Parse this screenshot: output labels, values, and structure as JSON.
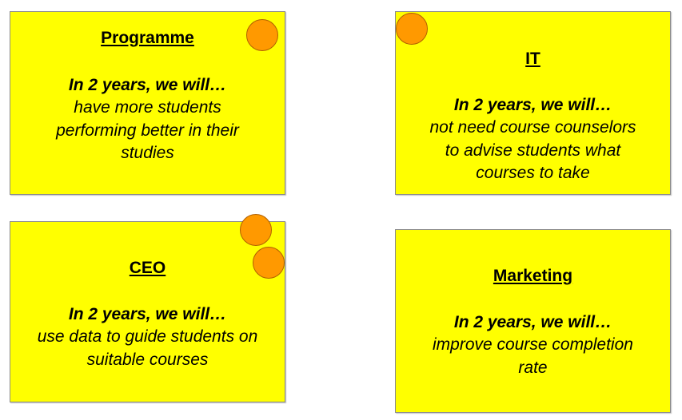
{
  "colors": {
    "note_background": "#ffff00",
    "note_border": "#8a8a8a",
    "marker": "#ff9900"
  },
  "notes": [
    {
      "title": "Programme",
      "lead": "In 2 years, we will…",
      "lines": [
        "have more students",
        "performing better in their",
        "studies"
      ]
    },
    {
      "title": "IT",
      "lead": "In 2 years, we will…",
      "lines": [
        "not need course counselors",
        "to advise students what",
        "courses to take"
      ]
    },
    {
      "title": "CEO",
      "lead": "In 2 years, we will…",
      "lines": [
        "use data to guide students on",
        "suitable courses"
      ]
    },
    {
      "title": "Marketing",
      "lead": "In 2 years, we will…",
      "lines": [
        "improve course completion",
        "rate"
      ]
    }
  ],
  "markers": [
    {
      "note": "Programme",
      "count": 1
    },
    {
      "note": "IT",
      "count": 1
    },
    {
      "note": "CEO",
      "count": 2
    },
    {
      "note": "Marketing",
      "count": 0
    }
  ]
}
